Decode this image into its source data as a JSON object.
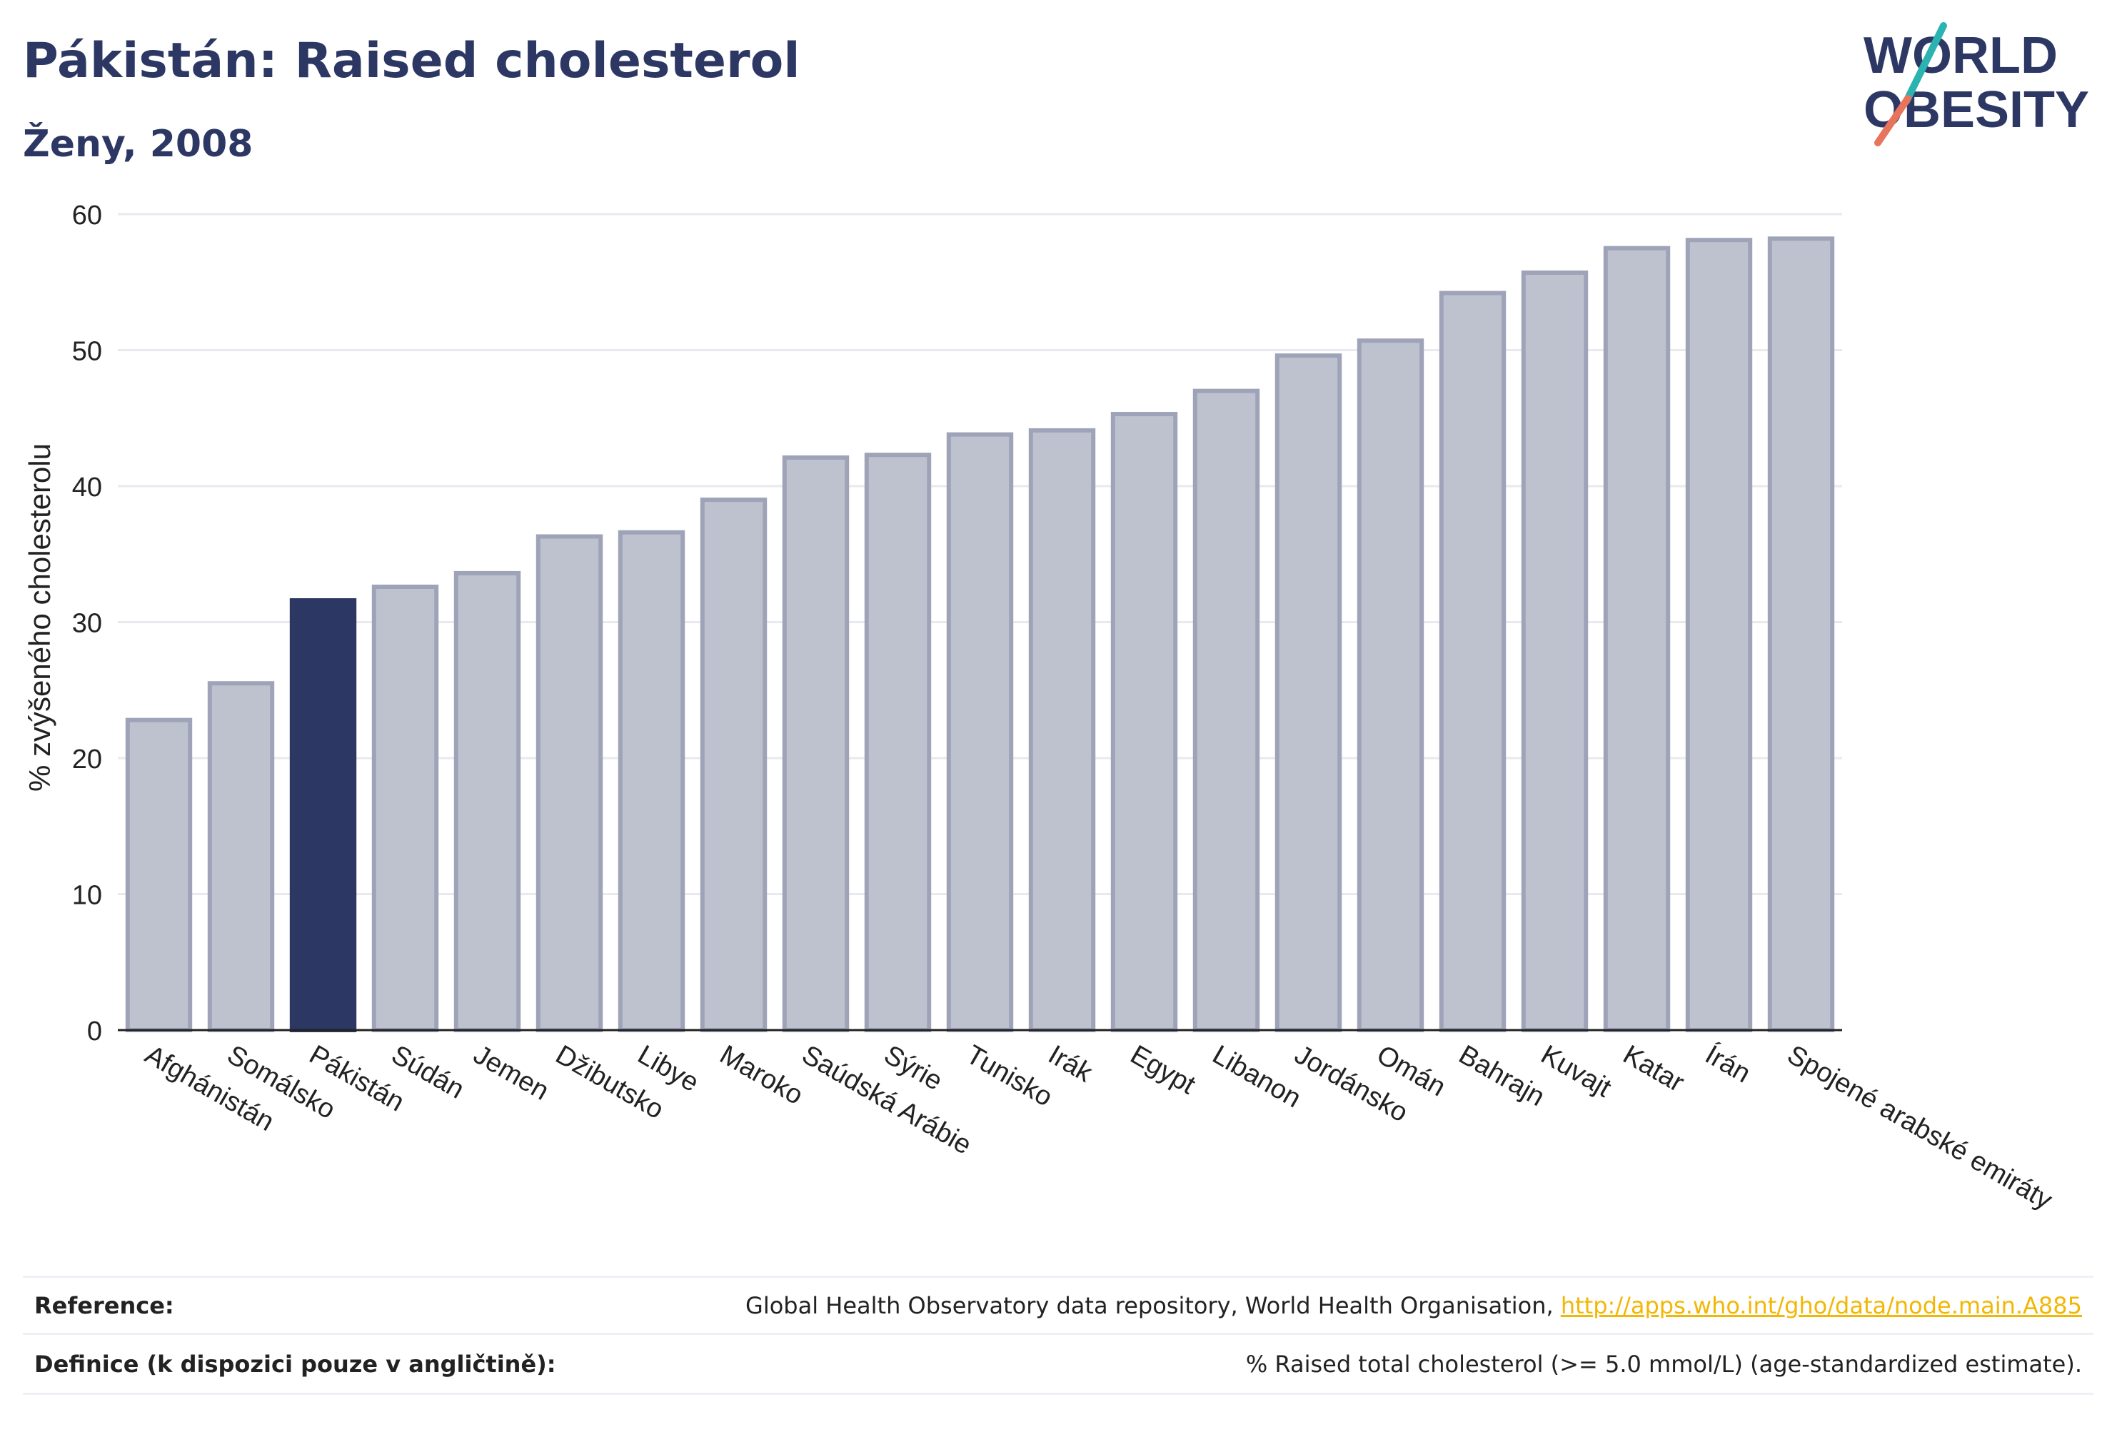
{
  "header": {
    "title": "Pákistán: Raised cholesterol",
    "subtitle": "Ženy, 2008"
  },
  "logo": {
    "line1": "WORLD",
    "line2": "OBESITY",
    "colors": {
      "text": "#2c3863",
      "slash_top": "#2bb3b1",
      "slash_bottom": "#e8745c"
    }
  },
  "colors": {
    "bar": "#bec2cf",
    "bar_outline": "#9ea3b8",
    "highlight": "#2c3863",
    "grid": "#e8eaef",
    "axis": "#222222",
    "text": "#2c3863",
    "link": "#f2b705"
  },
  "chart_data": {
    "type": "bar",
    "ylabel": "% zvýšeného cholesterolu",
    "xlabel": "",
    "ylim": [
      0,
      60
    ],
    "yticks": [
      0,
      10,
      20,
      30,
      40,
      50,
      60
    ],
    "grid": true,
    "highlight": "Pákistán",
    "categories": [
      "Afghánistán",
      "Somálsko",
      "Pákistán",
      "Súdán",
      "Jemen",
      "Džibutsko",
      "Libye",
      "Maroko",
      "Saúdská Arábie",
      "Sýrie",
      "Tunisko",
      "Irák",
      "Egypt",
      "Libanon",
      "Jordánsko",
      "Omán",
      "Bahrajn",
      "Kuvajt",
      "Katar",
      "Írán",
      "Spojené arabské emiráty"
    ],
    "values": [
      22.8,
      25.5,
      31.6,
      32.6,
      33.6,
      36.3,
      36.6,
      39.0,
      42.1,
      42.3,
      43.8,
      44.1,
      45.3,
      47.0,
      49.6,
      50.7,
      54.2,
      55.7,
      57.5,
      58.1,
      58.2
    ]
  },
  "footer": {
    "reference_label": "Reference:",
    "reference_text": "Global Health Observatory data repository, World Health Organisation, ",
    "reference_link": "http://apps.who.int/gho/data/node.main.A885",
    "definition_label": "Definice (k dispozici pouze v angličtině):",
    "definition_text": "% Raised total cholesterol (>= 5.0 mmol/L) (age-standardized estimate)."
  }
}
